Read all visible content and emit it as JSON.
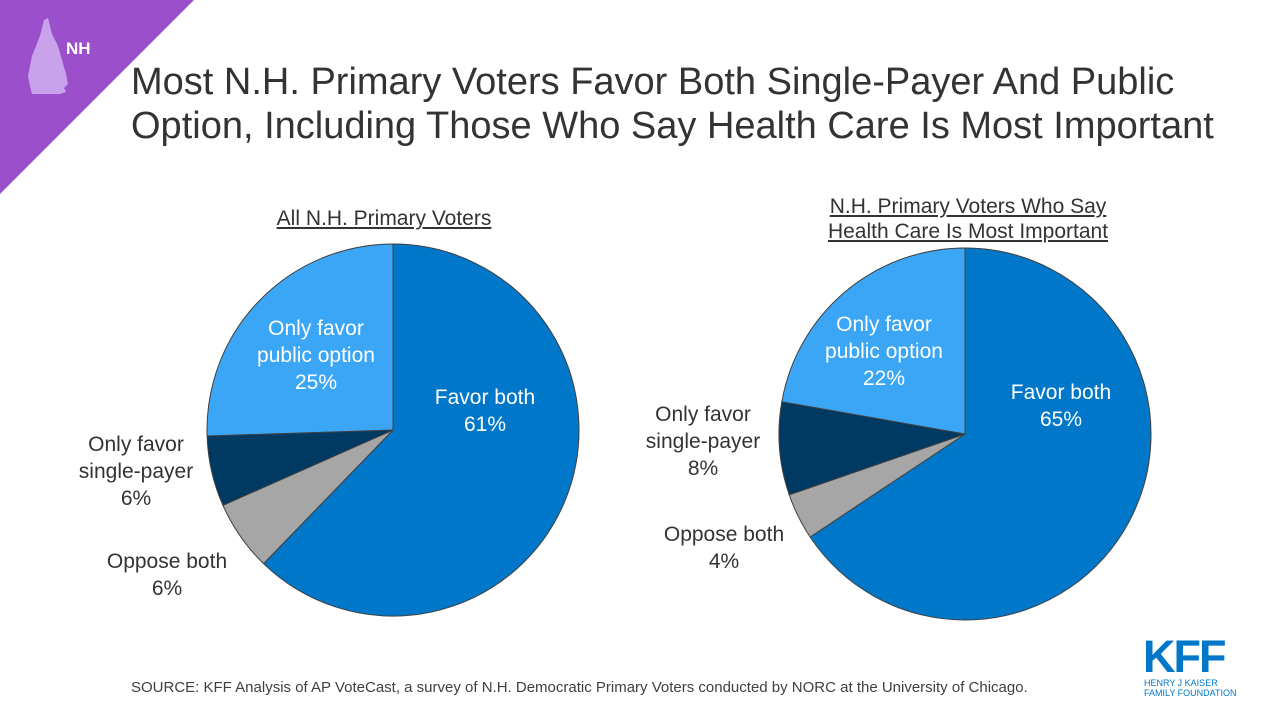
{
  "badge": {
    "label": "NH"
  },
  "title": "Most N.H. Primary Voters Favor Both Single-Payer And Public\nOption, Including Those Who Say Health Care Is Most Important",
  "colors": {
    "favor_both": "#0077C8",
    "public_option": "#3BA6F5",
    "single_payer": "#003A63",
    "oppose": "#A6A6A6",
    "corner": "#9B4FCB",
    "corner_shape": "#C9A2EC"
  },
  "chart_data": [
    {
      "type": "pie",
      "title": "All N.H. Primary Voters",
      "slices": [
        {
          "label": "Favor both",
          "value": 61,
          "value_label": "61%"
        },
        {
          "label": "Oppose both",
          "value": 6,
          "value_label": "6%"
        },
        {
          "label": "Only favor single-payer",
          "value": 6,
          "value_label": "6%"
        },
        {
          "label": "Only favor public option",
          "value": 25,
          "value_label": "25%"
        }
      ]
    },
    {
      "type": "pie",
      "title": "N.H. Primary Voters Who Say\nHealth Care Is Most Important",
      "slices": [
        {
          "label": "Favor both",
          "value": 65,
          "value_label": "65%"
        },
        {
          "label": "Oppose both",
          "value": 4,
          "value_label": "4%"
        },
        {
          "label": "Only favor single-payer",
          "value": 8,
          "value_label": "8%"
        },
        {
          "label": "Only favor public option",
          "value": 22,
          "value_label": "22%"
        }
      ]
    }
  ],
  "source": "SOURCE: KFF Analysis of AP VoteCast, a survey of N.H. Democratic Primary Voters conducted by NORC at the University of Chicago.",
  "logo": {
    "mark": "KFF",
    "line1": "HENRY J KAISER",
    "line2": "FAMILY FOUNDATION"
  }
}
